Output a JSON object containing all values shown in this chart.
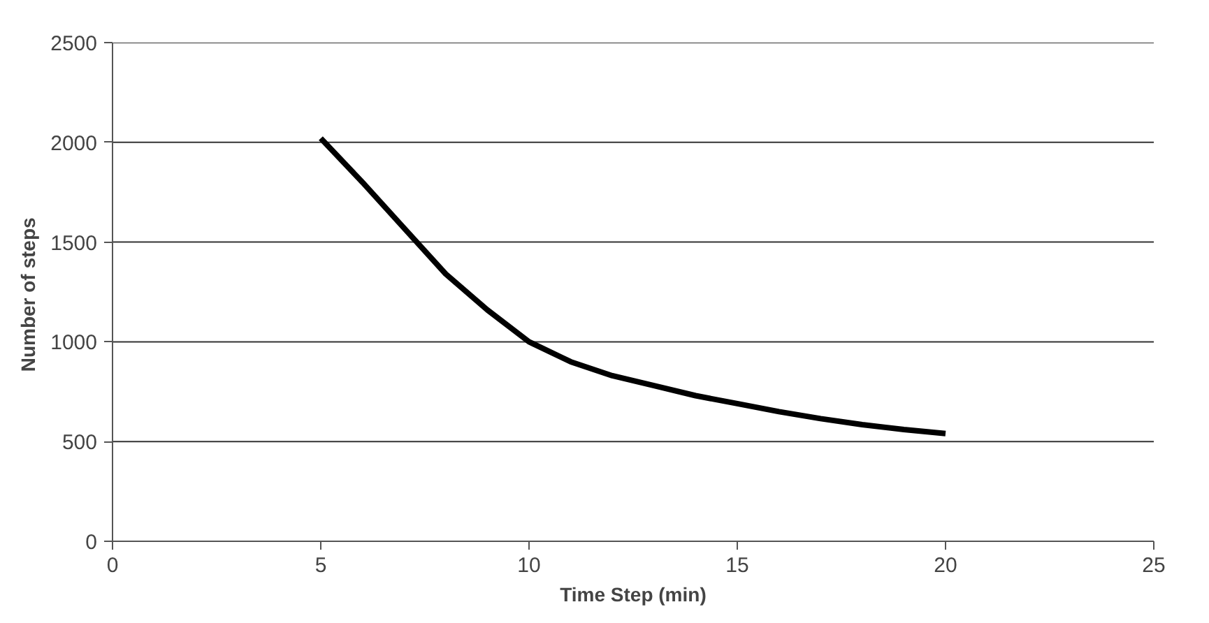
{
  "chart_data": {
    "type": "line",
    "xlabel": "Time Step (min)",
    "ylabel": "Number  of steps",
    "x": [
      5,
      6,
      7,
      8,
      9,
      10,
      11,
      12,
      13,
      14,
      15,
      16,
      17,
      18,
      19,
      20
    ],
    "series": [
      {
        "color": "#000000",
        "values": [
          2020,
          1800,
          1570,
          1340,
          1160,
          1000,
          900,
          830,
          780,
          730,
          690,
          650,
          615,
          585,
          560,
          540
        ]
      }
    ],
    "xlim": [
      0,
      25
    ],
    "xticks": [
      0,
      5,
      10,
      15,
      20,
      25
    ],
    "ylim": [
      0,
      2500
    ],
    "yticks": [
      0,
      500,
      1000,
      1500,
      2000,
      2500
    ],
    "grid": "y",
    "marker": "none",
    "line_style": "solid"
  }
}
